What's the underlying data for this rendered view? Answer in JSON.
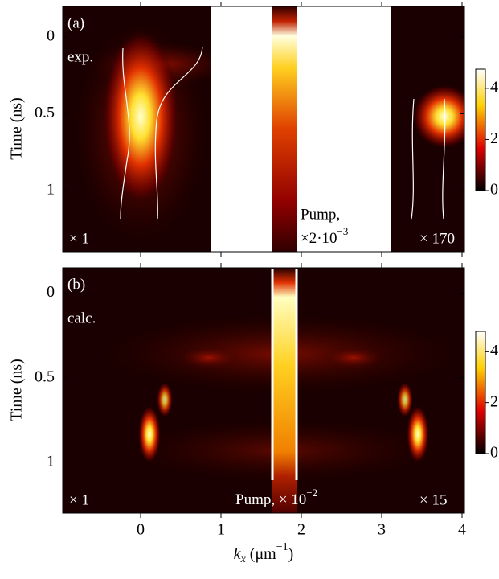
{
  "chart_data": [
    {
      "type": "heatmap",
      "panel": "(a)",
      "label": "exp.",
      "scale_left": "× 1",
      "scale_right": "× 170",
      "pump": {
        "text": "Pump,",
        "factor": "×2·10",
        "exponent": "−3"
      },
      "ylabel": "Time (ns)",
      "ylim": [
        -0.2,
        1.4
      ],
      "yticks": [
        0,
        0.5,
        1
      ],
      "xlim": [
        -0.97,
        4.03
      ],
      "colorbar": {
        "lim": [
          0,
          4.75
        ],
        "ticks": [
          0,
          2,
          4
        ]
      }
    },
    {
      "type": "heatmap",
      "panel": "(b)",
      "label": "calc.",
      "scale_left": "× 1",
      "scale_right": "× 15",
      "pump": {
        "text": "Pump, × 10",
        "exponent": "−2"
      },
      "ylabel": "Time (ns)",
      "ylim": [
        -0.15,
        1.3
      ],
      "yticks": [
        0,
        0.5,
        1
      ],
      "xlim": [
        -0.97,
        4.03
      ],
      "xticks": [
        0,
        1,
        2,
        3,
        4
      ],
      "xlabel": {
        "symbol": "k",
        "subscript": "x",
        "unit": " (μm",
        "exponent": "−1",
        "close": ")"
      },
      "colorbar": {
        "lim": [
          0,
          4.8
        ],
        "ticks": [
          0,
          2,
          4
        ]
      }
    }
  ]
}
